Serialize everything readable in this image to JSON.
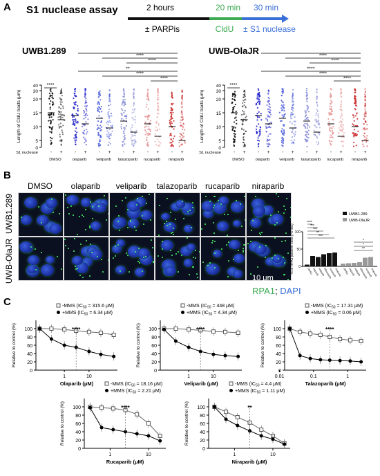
{
  "panelA": {
    "letter": "A",
    "title": "S1 nuclease assay",
    "timeline": {
      "t1": "2 hours",
      "t2": "20 min",
      "t3": "30 min",
      "l1": "± PARPis",
      "l2": "CldU",
      "l3": "± S1 nuclease",
      "c1": "#111111",
      "c2": "#3caa52",
      "c3": "#3a6fd8"
    },
    "left_title": "UWB1.289",
    "right_title": "UWB-OlaJR",
    "ylabel": "Length of CldU tracts (μm)",
    "yticks": [
      "40",
      "30",
      "20",
      "15",
      "10",
      "5",
      "0"
    ],
    "s1_label": "S1 nuclease",
    "s1_signs": [
      "-",
      "+"
    ],
    "groups": [
      "DMSO",
      "olaparib",
      "veliparib",
      "talazoparib",
      "rucaparib",
      "niraparib"
    ],
    "group_colors": [
      "#111111",
      "#2222cc",
      "#5566dd",
      "#8a8fd6",
      "#e89a9a",
      "#cc3333"
    ],
    "sig_left": [
      "****",
      "****",
      "****",
      "**",
      "****",
      "****",
      "****",
      "****"
    ],
    "sig_right": [
      "****",
      "****",
      "****",
      "****",
      "****",
      "****",
      "***",
      "****"
    ]
  },
  "panelB": {
    "letter": "B",
    "columns": [
      "DMSO",
      "olaparib",
      "veliparib",
      "talazoparib",
      "rucaparib",
      "niraparib"
    ],
    "rows": [
      "UWB1.289",
      "UWB-OlaJR"
    ],
    "scalebar": "10 μm",
    "stain_rpa": "RPA1",
    "stain_sep": "; ",
    "stain_dapi": "DAPI",
    "bar_ylabel": "% of RPA1 positive cells (>5 foci)",
    "legend": [
      "UWB1.289",
      "UWB-OlaJR"
    ],
    "sig": [
      "****",
      "***",
      "***",
      "**",
      "***",
      "**",
      "*",
      "*"
    ]
  },
  "panelC": {
    "letter": "C",
    "ylabel": "Relative to control (%)",
    "plots": [
      {
        "xlabel": "Olaparib (μM)",
        "minus": "-MMS (IC",
        "minus_val": " = 315.6 μM)",
        "plus": "+MMS (IC",
        "plus_val": " = 6.34 μM)",
        "sig": "****",
        "xticks": [
          "1",
          "10"
        ]
      },
      {
        "xlabel": "Veliparib (μM)",
        "minus": "-MMS (IC",
        "minus_val": " = 448 μM)",
        "plus": "+MMS (IC",
        "plus_val": " = 4.34 μM)",
        "sig": "****",
        "xticks": [
          "1",
          "10"
        ]
      },
      {
        "xlabel": "Talazoparib (μM)",
        "minus": "-MMS (IC",
        "minus_val": " = 17.31 μM)",
        "plus": "+MMS (IC",
        "plus_val": " = 0.06 μM)",
        "sig": "****",
        "xticks": [
          "0.01",
          "0.1",
          "1"
        ]
      },
      {
        "xlabel": "Rucaparib (μM)",
        "minus": "-MMS (IC",
        "minus_val": " = 18.16 μM)",
        "plus": "+MMS (IC",
        "plus_val": " = 2.21 μM)",
        "sig": "****",
        "xticks": [
          "1",
          "10"
        ]
      },
      {
        "xlabel": "Niraparib (μM)",
        "minus": "-MMS (IC",
        "minus_val": " = 4.4 μM)",
        "plus": "+MMS (IC",
        "plus_val": " = 1.11 μM)",
        "sig": "**",
        "xticks": [
          "1",
          "10"
        ]
      }
    ],
    "ic_sub": "50",
    "yticks": [
      "100",
      "80",
      "60",
      "40",
      "20",
      "0"
    ]
  },
  "chart_data": [
    {
      "type": "bar",
      "title": "",
      "categories": [
        "DMSO",
        "olaparib",
        "veliparib",
        "talazoparib",
        "rucaparib",
        "niraparib"
      ],
      "series": [
        {
          "name": "UWB1.289",
          "values": [
            5,
            30,
            27,
            35,
            38,
            40
          ]
        },
        {
          "name": "UWB-OlaJR",
          "values": [
            8,
            9,
            10,
            12,
            25,
            27
          ]
        }
      ],
      "ylabel": "% of RPA1 positive cells (>5 foci)",
      "ylim": [
        0,
        100
      ],
      "legend": "top-right"
    },
    {
      "type": "line",
      "xlabel": "Olaparib (μM)",
      "ylabel": "Relative to control (%)",
      "ylim": [
        0,
        120
      ],
      "log_x": true,
      "x": [
        0.1,
        0.3,
        1,
        3,
        10,
        30,
        100
      ],
      "series": [
        {
          "name": "-MMS",
          "values": [
            100,
            100,
            98,
            95,
            92,
            90,
            85
          ]
        },
        {
          "name": "+MMS",
          "values": [
            100,
            75,
            60,
            55,
            45,
            38,
            33
          ]
        }
      ]
    },
    {
      "type": "line",
      "xlabel": "Veliparib (μM)",
      "ylabel": "Relative to control (%)",
      "ylim": [
        0,
        120
      ],
      "log_x": true,
      "x": [
        0.1,
        0.3,
        1,
        3,
        10,
        30,
        100
      ],
      "series": [
        {
          "name": "-MMS",
          "values": [
            100,
            100,
            98,
            96,
            93,
            92,
            90
          ]
        },
        {
          "name": "+MMS",
          "values": [
            98,
            70,
            55,
            45,
            38,
            35,
            33
          ]
        }
      ]
    },
    {
      "type": "line",
      "xlabel": "Talazoparib (μM)",
      "ylabel": "Relative to control (%)",
      "ylim": [
        0,
        120
      ],
      "log_x": true,
      "x": [
        0.02,
        0.04,
        0.08,
        0.16,
        0.3,
        0.6,
        1.2,
        2.5
      ],
      "series": [
        {
          "name": "-MMS",
          "values": [
            100,
            92,
            88,
            85,
            80,
            75,
            72,
            70
          ]
        },
        {
          "name": "+MMS",
          "values": [
            100,
            35,
            28,
            25,
            24,
            23,
            22,
            20
          ]
        }
      ]
    },
    {
      "type": "line",
      "xlabel": "Rucaparib (μM)",
      "ylabel": "Relative to control (%)",
      "ylim": [
        0,
        120
      ],
      "log_x": true,
      "x": [
        0.3,
        0.6,
        1.2,
        2.5,
        5,
        10,
        20
      ],
      "series": [
        {
          "name": "-MMS",
          "values": [
            100,
            98,
            96,
            92,
            82,
            60,
            30
          ]
        },
        {
          "name": "+MMS",
          "values": [
            98,
            50,
            45,
            40,
            35,
            30,
            18
          ]
        }
      ]
    },
    {
      "type": "line",
      "xlabel": "Niraparib (μM)",
      "ylabel": "Relative to control (%)",
      "ylim": [
        0,
        120
      ],
      "log_x": true,
      "x": [
        0.3,
        0.6,
        1.2,
        2.5,
        5,
        10,
        20
      ],
      "series": [
        {
          "name": "-MMS",
          "values": [
            100,
            88,
            75,
            62,
            45,
            30,
            12
          ]
        },
        {
          "name": "+MMS",
          "values": [
            100,
            70,
            55,
            42,
            30,
            22,
            10
          ]
        }
      ]
    }
  ]
}
